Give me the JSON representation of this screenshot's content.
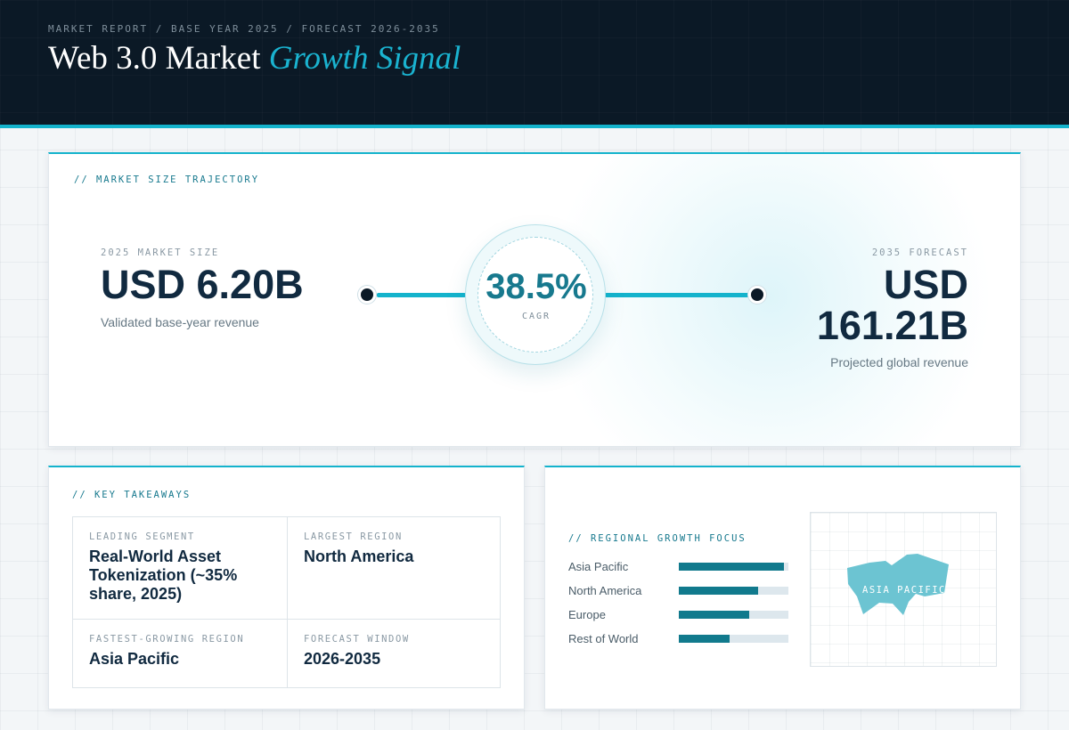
{
  "header": {
    "eyebrow": "MARKET REPORT / BASE YEAR 2025 / FORECAST 2026-2035",
    "title_main": "Web 3.0 Market",
    "title_accent": "Growth Signal"
  },
  "trajectory": {
    "section_label": "// MARKET SIZE TRAJECTORY",
    "start": {
      "kicker": "2025 MARKET SIZE",
      "value": "USD 6.20B",
      "caption": "Validated base-year revenue"
    },
    "cagr": {
      "value": "38.5%",
      "label": "CAGR"
    },
    "end": {
      "kicker": "2035 FORECAST",
      "value_line1": "USD",
      "value_line2": "161.21B",
      "caption": "Projected global revenue"
    }
  },
  "takeaways": {
    "section_label": "// KEY TAKEAWAYS",
    "items": [
      {
        "label": "LEADING SEGMENT",
        "value": "Real-World Asset Tokenization (~35% share, 2025)"
      },
      {
        "label": "LARGEST REGION",
        "value": "North America"
      },
      {
        "label": "FASTEST-GROWING REGION",
        "value": "Asia Pacific"
      },
      {
        "label": "FORECAST WINDOW",
        "value": "2026-2035"
      }
    ]
  },
  "regional": {
    "section_label": "// REGIONAL GROWTH FOCUS",
    "bars": [
      {
        "name": "Asia Pacific",
        "level": 0.96
      },
      {
        "name": "North America",
        "level": 0.72
      },
      {
        "name": "Europe",
        "level": 0.64
      },
      {
        "name": "Rest of World",
        "level": 0.46
      }
    ],
    "map_label": "ASIA PACIFIC",
    "colors": {
      "bar_fill": "#117a8d",
      "bar_track": "#dde7ed",
      "map_region": "#6cc4d2"
    }
  },
  "colors": {
    "accent": "#14b3cc",
    "header_bg": "#0b1926",
    "text_dark": "#112a40",
    "teal": "#17798e"
  }
}
